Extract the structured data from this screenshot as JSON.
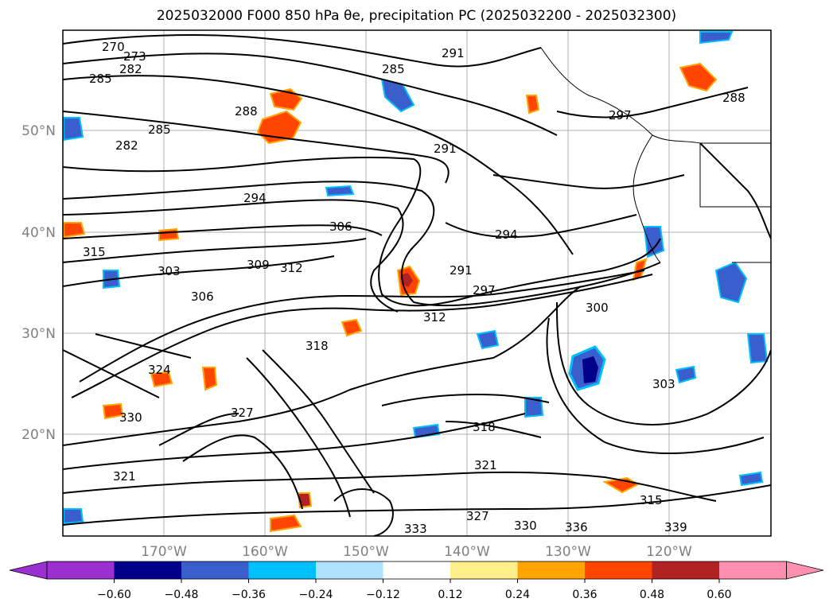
{
  "title": "2025032000 F000 850 hPa θe, precipitation PC (2025032200 - 2025032300)",
  "map": {
    "lat_labels": [
      "50°N",
      "40°N",
      "30°N",
      "20°N"
    ],
    "lon_labels": [
      "170°W",
      "160°W",
      "150°W",
      "140°W",
      "130°W",
      "120°W"
    ],
    "contour_labels": [
      "270",
      "273",
      "285",
      "282",
      "285",
      "282",
      "288",
      "288",
      "285",
      "291",
      "291",
      "291",
      "294",
      "294",
      "297",
      "297",
      "300",
      "303",
      "303",
      "306",
      "306",
      "309",
      "312",
      "312",
      "315",
      "315",
      "318",
      "318",
      "321",
      "321",
      "324",
      "327",
      "327",
      "330",
      "330",
      "333",
      "336",
      "339"
    ],
    "line_color": "#000000",
    "grid_color": "#b0b0b0"
  },
  "colorbar": {
    "ticks": [
      "−0.60",
      "−0.48",
      "−0.36",
      "−0.24",
      "−0.12",
      "0.12",
      "0.24",
      "0.36",
      "0.48",
      "0.60"
    ],
    "colors": [
      "#9b30d0",
      "#00008b",
      "#3a5fcd",
      "#00bfff",
      "#b0e2ff",
      "#ffffff",
      "#fff08c",
      "#ffa500",
      "#ff4500",
      "#b22222",
      "#ff8fb0",
      "#ff8fb0"
    ]
  }
}
